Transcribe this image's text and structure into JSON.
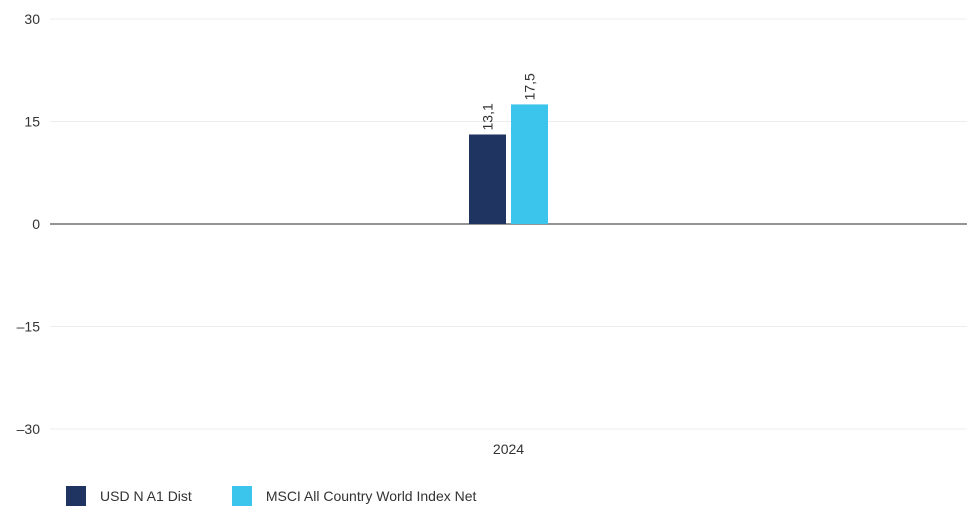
{
  "chart_data": {
    "type": "bar",
    "categories": [
      "2024"
    ],
    "series": [
      {
        "name": "USD N A1 Dist",
        "values": [
          13.1
        ],
        "labels": [
          "13,1"
        ],
        "color": "#1f3460"
      },
      {
        "name": "MSCI All Country World Index Net",
        "values": [
          17.5
        ],
        "labels": [
          "17,5"
        ],
        "color": "#3cc5ec"
      }
    ],
    "ylim": [
      -30,
      30
    ],
    "yticks": [
      30,
      15,
      0,
      -15,
      -30
    ],
    "ytick_labels": [
      "30",
      "15",
      "0",
      "–15",
      "–30"
    ],
    "grid": true,
    "legend_position": "bottom-left"
  }
}
